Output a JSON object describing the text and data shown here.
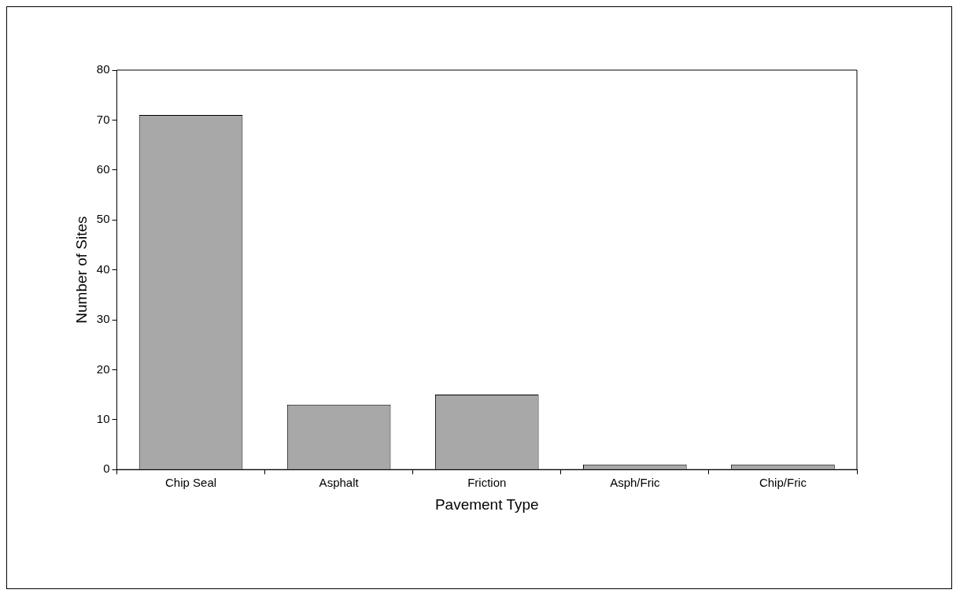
{
  "chart_data": {
    "type": "bar",
    "xlabel": "Pavement Type",
    "ylabel": "Number of Sites",
    "categories": [
      "Chip Seal",
      "Asphalt",
      "Friction",
      "Asph/Fric",
      "Chip/Fric"
    ],
    "values": [
      71,
      13,
      15,
      1,
      1
    ],
    "color": "#a8a8a8",
    "ylim": [
      0,
      80
    ],
    "yticks": [
      0,
      10,
      20,
      30,
      40,
      50,
      60,
      70,
      80
    ]
  }
}
